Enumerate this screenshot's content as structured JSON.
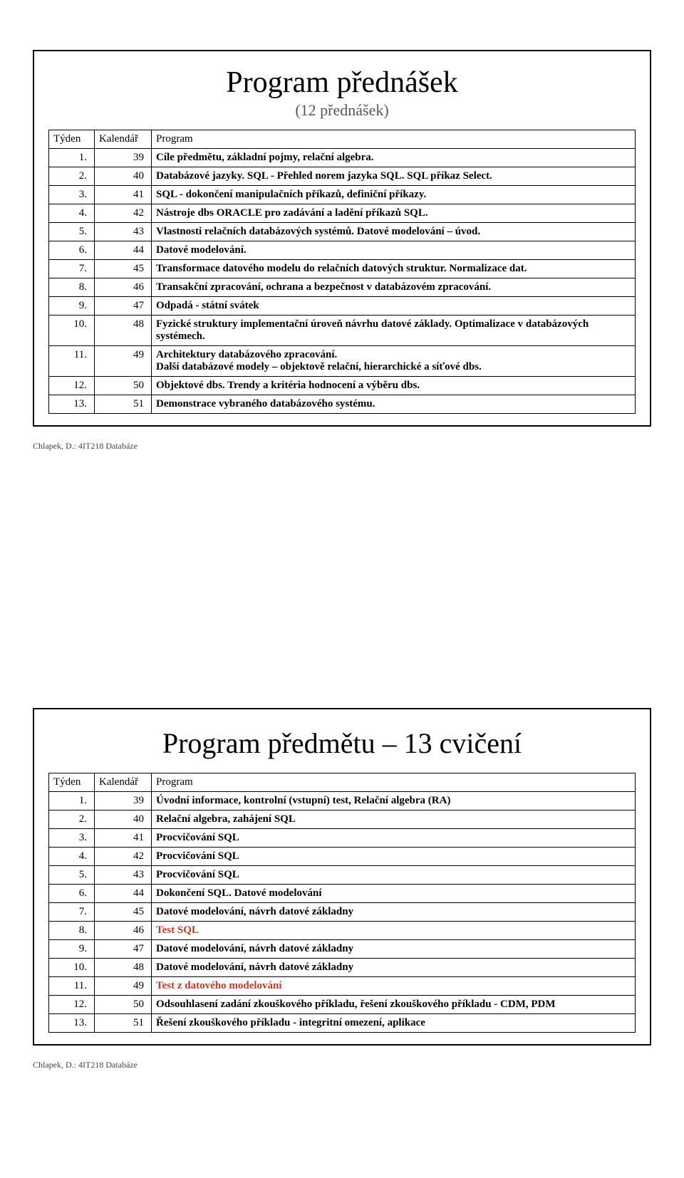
{
  "slide1": {
    "title": "Program přednášek",
    "subtitle": "(12 přednášek)",
    "headers": {
      "week": "Týden",
      "cal": "Kalendář",
      "prog": "Program"
    },
    "rows": [
      {
        "week": "1.",
        "cal": "39",
        "prog": "Cíle předmětu, základní pojmy, relační algebra."
      },
      {
        "week": "2.",
        "cal": "40",
        "prog": "Databázové jazyky. SQL - Přehled norem jazyka SQL. SQL příkaz Select."
      },
      {
        "week": "3.",
        "cal": "41",
        "prog": "SQL - dokončení manipulačních příkazů, definiční příkazy."
      },
      {
        "week": "4.",
        "cal": "42",
        "prog": "Nástroje dbs ORACLE pro zadávání a ladění příkazů SQL."
      },
      {
        "week": "5.",
        "cal": "43",
        "prog": "Vlastnosti relačních databázových systémů. Datové modelování – úvod."
      },
      {
        "week": "6.",
        "cal": "44",
        "prog": "Datové modelování."
      },
      {
        "week": "7.",
        "cal": "45",
        "prog": "Transformace datového modelu do relačních datových struktur. Normalizace dat."
      },
      {
        "week": "8.",
        "cal": "46",
        "prog": "Transakční zpracování, ochrana a bezpečnost v databázovém zpracování."
      },
      {
        "week": "9.",
        "cal": "47",
        "prog": "Odpadá - státní svátek"
      },
      {
        "week": "10.",
        "cal": "48",
        "prog": "Fyzické struktury implementační úroveň návrhu datové základy. Optimalizace v databázových systémech."
      },
      {
        "week": "11.",
        "cal": "49",
        "prog": "Architektury databázového zpracování.\nDalší databázové modely – objektově relační, hierarchické a síťové dbs."
      },
      {
        "week": "12.",
        "cal": "50",
        "prog": "Objektové dbs. Trendy a kritéria hodnocení a výběru dbs."
      },
      {
        "week": "13.",
        "cal": "51",
        "prog": "Demonstrace vybraného databázového systému."
      }
    ]
  },
  "footer": "Chlapek, D.: 4IT218 Databáze",
  "slide2": {
    "title": "Program předmětu – 13 cvičení",
    "headers": {
      "week": "Týden",
      "cal": "Kalendář",
      "prog": "Program"
    },
    "rows": [
      {
        "week": "1.",
        "cal": "39",
        "prog": "Úvodní informace, kontrolní (vstupní) test, Relační algebra (RA)"
      },
      {
        "week": "2.",
        "cal": "40",
        "prog": "Relační algebra, zahájení SQL"
      },
      {
        "week": "3.",
        "cal": "41",
        "prog": "Procvičování SQL"
      },
      {
        "week": "4.",
        "cal": "42",
        "prog": "Procvičování SQL"
      },
      {
        "week": "5.",
        "cal": "43",
        "prog": "Procvičování SQL"
      },
      {
        "week": "6.",
        "cal": "44",
        "prog": "Dokončení SQL. Datové modelování"
      },
      {
        "week": "7.",
        "cal": "45",
        "prog": "Datové modelování, návrh datové základny"
      },
      {
        "week": "8.",
        "cal": "46",
        "prog": "Test SQL",
        "red": true
      },
      {
        "week": "9.",
        "cal": "47",
        "prog": "Datové modelování, návrh datové základny"
      },
      {
        "week": "10.",
        "cal": "48",
        "prog": "Datové modelování, návrh datové základny"
      },
      {
        "week": "11.",
        "cal": "49",
        "prog": "Test z datového modelování",
        "red": true
      },
      {
        "week": "12.",
        "cal": "50",
        "prog": "Odsouhlasení zadání zkouškového příkladu, řešení zkouškového příkladu - CDM, PDM"
      },
      {
        "week": "13.",
        "cal": "51",
        "prog": "Řešení zkouškového příkladu - integritní omezení, aplikace"
      }
    ]
  }
}
